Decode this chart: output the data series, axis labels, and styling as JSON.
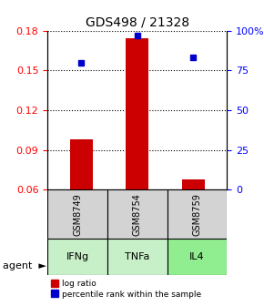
{
  "title": "GDS498 / 21328",
  "samples": [
    "GSM8749",
    "GSM8754",
    "GSM8759"
  ],
  "agents": [
    "IFNg",
    "TNFa",
    "IL4"
  ],
  "log_ratio": [
    0.098,
    0.174,
    0.068
  ],
  "percentile": [
    80,
    97,
    83
  ],
  "ylim_left": [
    0.06,
    0.18
  ],
  "ylim_right": [
    0,
    100
  ],
  "yticks_left": [
    0.06,
    0.09,
    0.12,
    0.15,
    0.18
  ],
  "yticks_right": [
    0,
    25,
    50,
    75,
    100
  ],
  "ytick_labels_right": [
    "0",
    "25",
    "50",
    "75",
    "100%"
  ],
  "bar_color": "#cc0000",
  "point_color": "#0000cc",
  "bar_bottom": 0.06,
  "agent_colors": [
    "#c8f0c8",
    "#c8f0c8",
    "#90ee90"
  ],
  "sample_box_color": "#d3d3d3",
  "legend_bar_label": "log ratio",
  "legend_point_label": "percentile rank within the sample"
}
